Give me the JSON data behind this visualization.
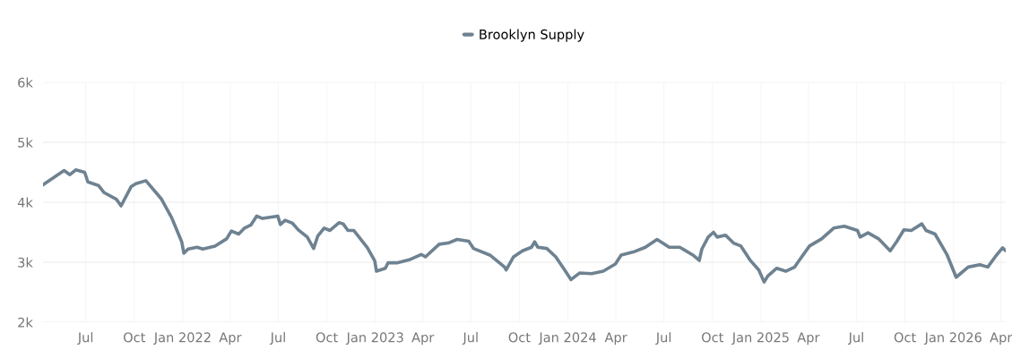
{
  "chart_data": {
    "type": "line",
    "x": [
      "2021-04-11",
      "2021-05-01",
      "2021-05-21",
      "2021-06-01",
      "2021-06-12",
      "2021-06-29",
      "2021-07-05",
      "2021-07-25",
      "2021-08-05",
      "2021-08-28",
      "2021-09-06",
      "2021-09-25",
      "2021-10-04",
      "2021-10-23",
      "2021-11-21",
      "2021-12-11",
      "2021-12-30",
      "2022-01-03",
      "2022-01-11",
      "2022-01-28",
      "2022-02-08",
      "2022-03-03",
      "2022-03-25",
      "2022-04-03",
      "2022-04-17",
      "2022-04-28",
      "2022-05-10",
      "2022-05-21",
      "2022-06-01",
      "2022-06-30",
      "2022-07-05",
      "2022-07-14",
      "2022-07-28",
      "2022-08-08",
      "2022-08-25",
      "2022-09-06",
      "2022-09-14",
      "2022-09-26",
      "2022-10-07",
      "2022-10-24",
      "2022-11-01",
      "2022-11-10",
      "2022-11-21",
      "2022-12-17",
      "2022-12-31",
      "2023-01-03",
      "2023-01-20",
      "2023-01-25",
      "2023-02-11",
      "2023-03-06",
      "2023-03-29",
      "2023-04-06",
      "2023-05-02",
      "2023-05-19",
      "2023-06-05",
      "2023-06-27",
      "2023-07-06",
      "2023-08-06",
      "2023-09-03",
      "2023-09-06",
      "2023-09-20",
      "2023-10-07",
      "2023-10-24",
      "2023-10-30",
      "2023-11-05",
      "2023-11-22",
      "2023-12-09",
      "2023-12-26",
      "2024-01-07",
      "2024-01-23",
      "2024-02-15",
      "2024-03-08",
      "2024-03-31",
      "2024-04-11",
      "2024-05-04",
      "2024-05-27",
      "2024-06-18",
      "2024-07-11",
      "2024-07-31",
      "2024-08-25",
      "2024-09-06",
      "2024-09-11",
      "2024-09-23",
      "2024-10-03",
      "2024-10-10",
      "2024-10-26",
      "2024-11-10",
      "2024-11-24",
      "2024-12-11",
      "2024-12-28",
      "2025-01-07",
      "2025-01-14",
      "2025-01-31",
      "2025-02-17",
      "2025-03-06",
      "2025-03-12",
      "2025-04-03",
      "2025-04-26",
      "2025-05-19",
      "2025-06-08",
      "2025-07-03",
      "2025-07-08",
      "2025-07-23",
      "2025-08-12",
      "2025-09-03",
      "2025-09-15",
      "2025-09-29",
      "2025-10-13",
      "2025-11-02",
      "2025-11-10",
      "2025-11-27",
      "2025-12-20",
      "2026-01-06",
      "2026-01-29",
      "2026-02-20",
      "2026-03-07",
      "2026-03-21",
      "2026-04-04",
      "2026-04-10"
    ],
    "series": [
      {
        "name": "Brooklyn Supply",
        "color": "#6e8291",
        "values": [
          4290,
          4410,
          4530,
          4460,
          4540,
          4500,
          4340,
          4280,
          4160,
          4050,
          3940,
          4260,
          4310,
          4360,
          4060,
          3740,
          3340,
          3150,
          3220,
          3250,
          3220,
          3270,
          3390,
          3520,
          3470,
          3570,
          3620,
          3770,
          3730,
          3770,
          3630,
          3700,
          3650,
          3540,
          3420,
          3230,
          3440,
          3570,
          3530,
          3660,
          3640,
          3530,
          3530,
          3240,
          3020,
          2850,
          2900,
          2990,
          2990,
          3040,
          3130,
          3090,
          3300,
          3320,
          3380,
          3350,
          3230,
          3120,
          2920,
          2870,
          3090,
          3190,
          3250,
          3340,
          3250,
          3230,
          3090,
          2870,
          2710,
          2820,
          2810,
          2850,
          2970,
          3120,
          3170,
          3250,
          3380,
          3250,
          3250,
          3120,
          3030,
          3220,
          3420,
          3500,
          3420,
          3450,
          3320,
          3270,
          3040,
          2870,
          2670,
          2770,
          2900,
          2850,
          2920,
          3000,
          3270,
          3390,
          3570,
          3600,
          3530,
          3420,
          3490,
          3390,
          3190,
          3340,
          3540,
          3530,
          3640,
          3530,
          3470,
          3120,
          2750,
          2920,
          2960,
          2920,
          3090,
          3240,
          3190
        ]
      }
    ],
    "xlim": [
      "2021-04-11",
      "2026-04-10"
    ],
    "xticks": [
      {
        "value": "2021-07-01",
        "label": "Jul"
      },
      {
        "value": "2021-10-01",
        "label": "Oct"
      },
      {
        "value": "2022-01-01",
        "label": "Jan 2022"
      },
      {
        "value": "2022-04-01",
        "label": "Apr"
      },
      {
        "value": "2022-07-01",
        "label": "Jul"
      },
      {
        "value": "2022-10-01",
        "label": "Oct"
      },
      {
        "value": "2023-01-01",
        "label": "Jan 2023"
      },
      {
        "value": "2023-04-01",
        "label": "Apr"
      },
      {
        "value": "2023-07-01",
        "label": "Jul"
      },
      {
        "value": "2023-10-01",
        "label": "Oct"
      },
      {
        "value": "2024-01-01",
        "label": "Jan 2024"
      },
      {
        "value": "2024-04-01",
        "label": "Apr"
      },
      {
        "value": "2024-07-01",
        "label": "Jul"
      },
      {
        "value": "2024-10-01",
        "label": "Oct"
      },
      {
        "value": "2025-01-01",
        "label": "Jan 2025"
      },
      {
        "value": "2025-04-01",
        "label": "Apr"
      },
      {
        "value": "2025-07-01",
        "label": "Jul"
      },
      {
        "value": "2025-10-01",
        "label": "Oct"
      },
      {
        "value": "2026-01-01",
        "label": "Jan 2026"
      },
      {
        "value": "2026-04-01",
        "label": "Apr"
      }
    ],
    "ylim": [
      2000,
      6000
    ],
    "yticks": [
      {
        "value": 2000,
        "label": "2k"
      },
      {
        "value": 3000,
        "label": "3k"
      },
      {
        "value": 4000,
        "label": "4k"
      },
      {
        "value": 5000,
        "label": "5k"
      },
      {
        "value": 6000,
        "label": "6k"
      }
    ],
    "grid": true,
    "legend": "top",
    "marker": "none",
    "line_style": "solid"
  }
}
